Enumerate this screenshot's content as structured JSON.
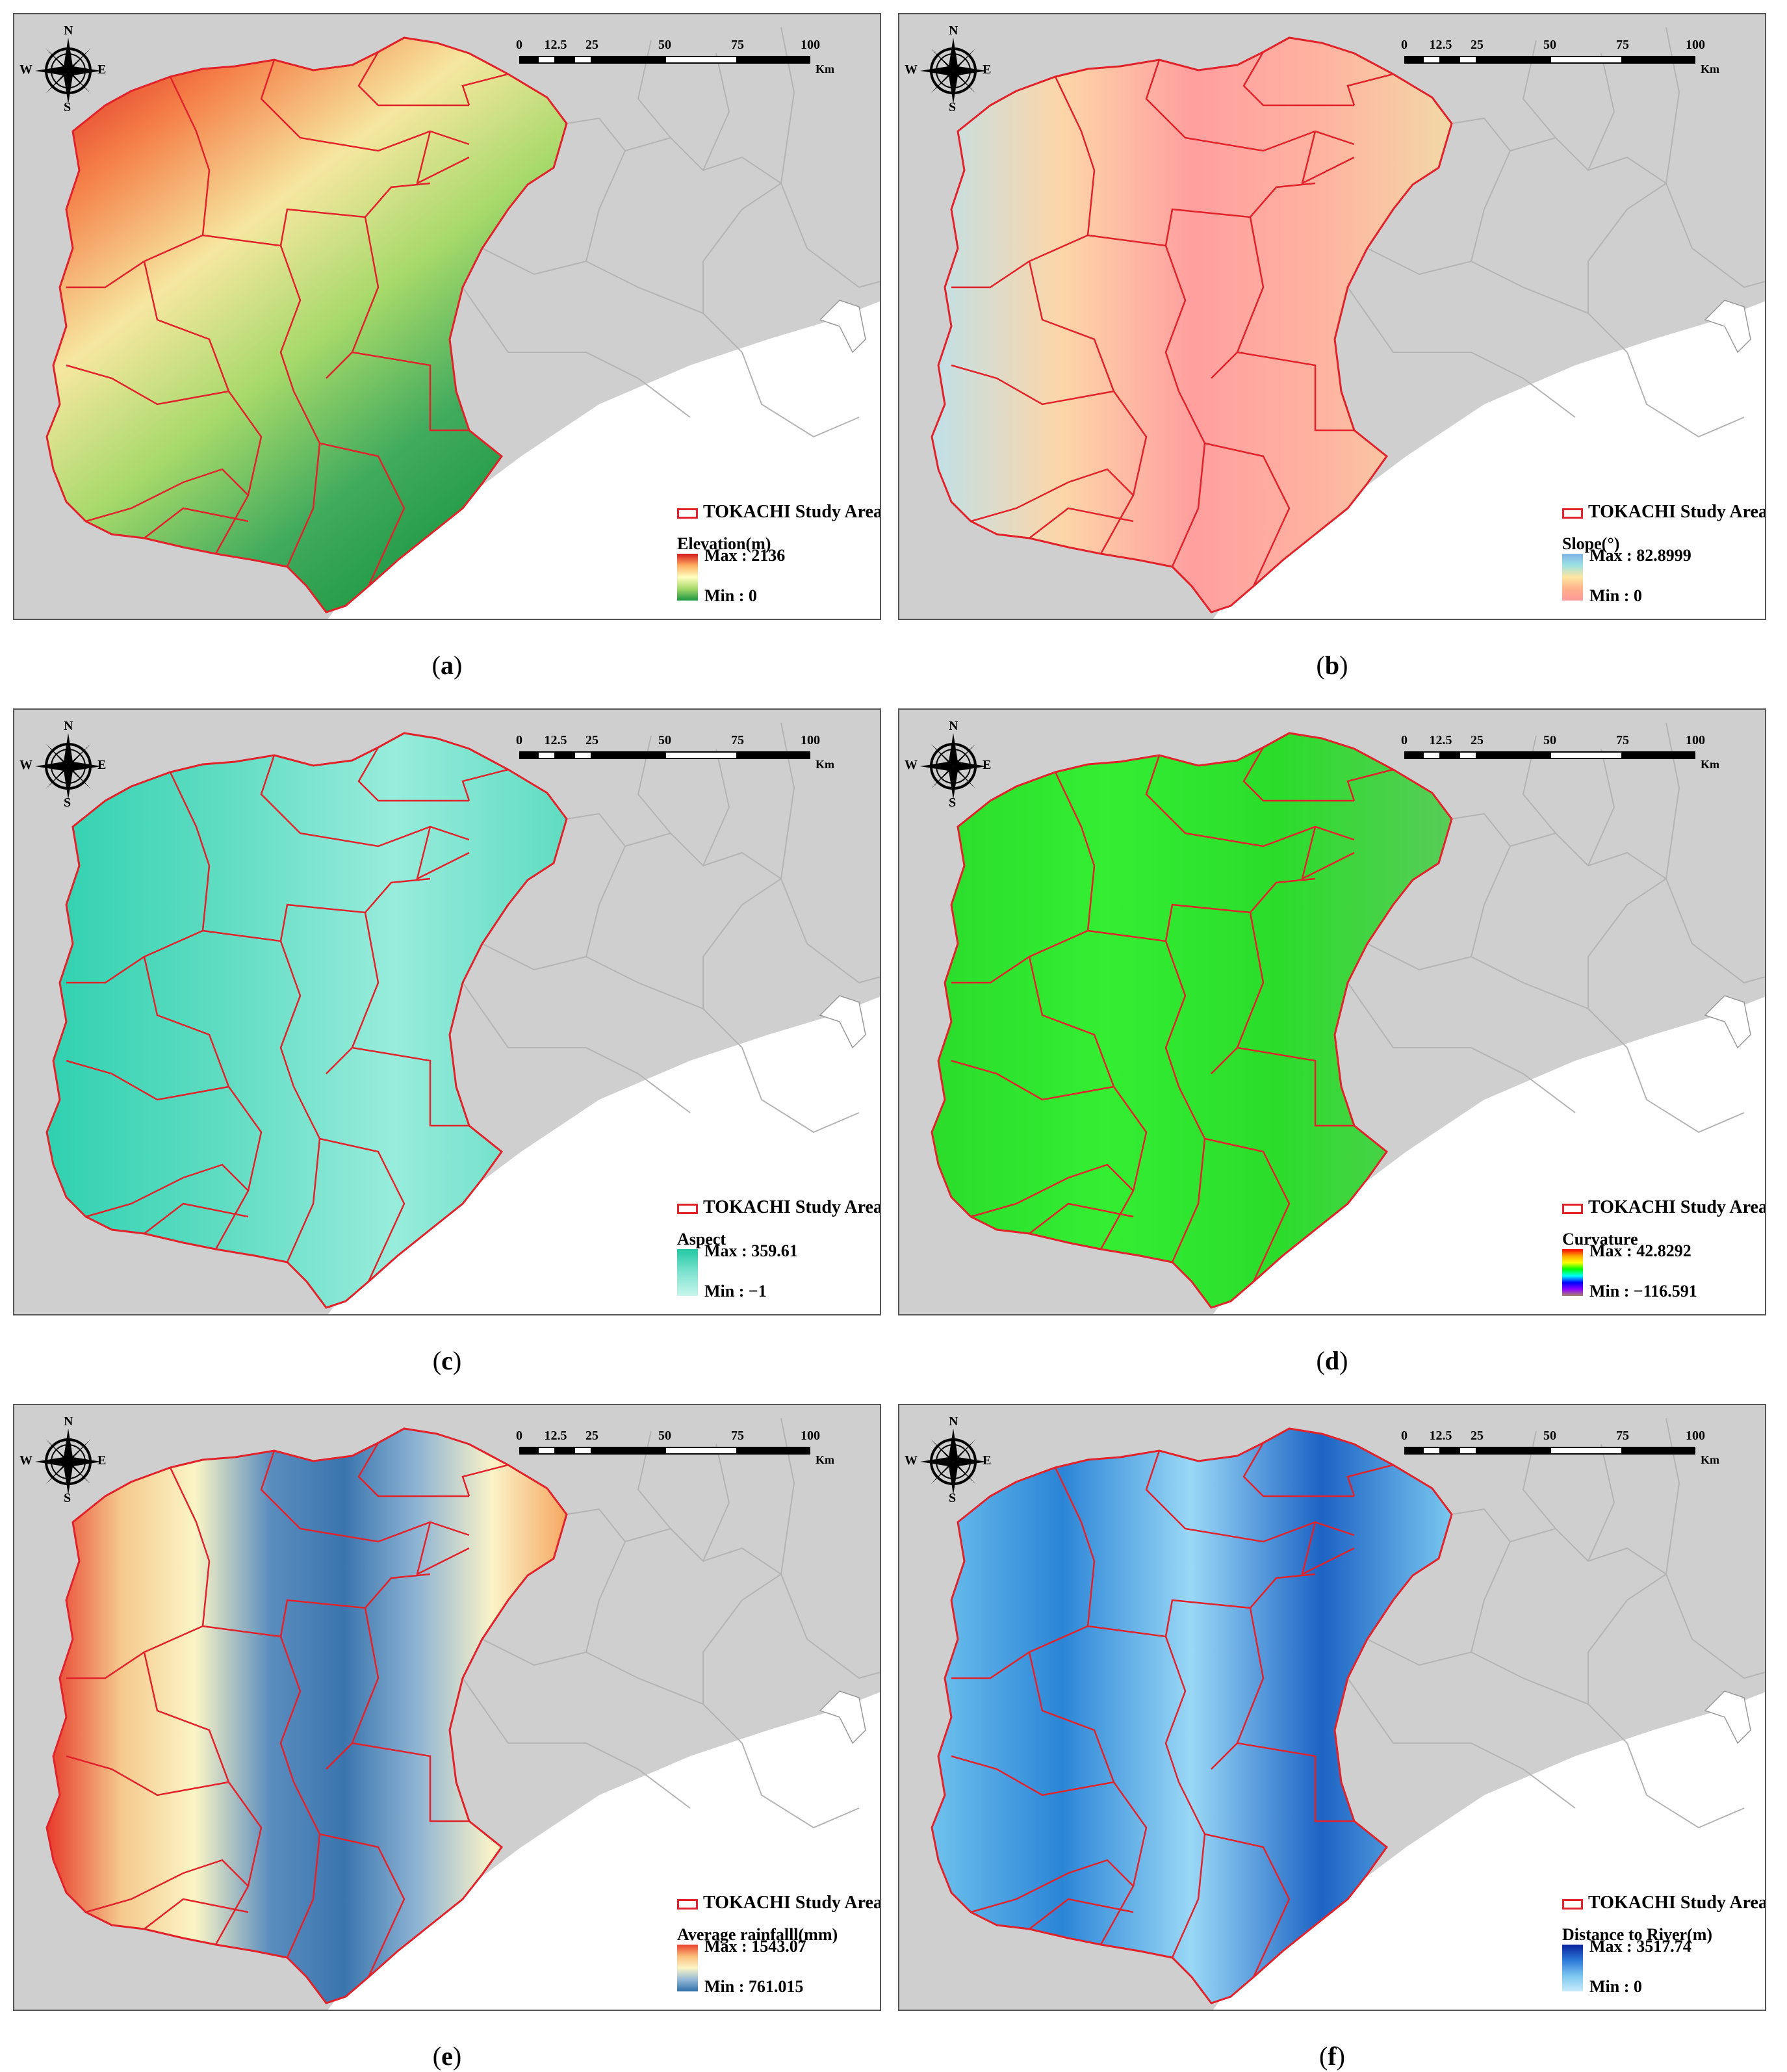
{
  "scale": {
    "ticks": [
      "0",
      "12.5",
      "25",
      "50",
      "75",
      "100"
    ],
    "unit": "Km"
  },
  "compass": {
    "n": "N",
    "s": "S",
    "e": "E",
    "w": "W",
    "icon": "compass-rose-icon"
  },
  "study_area_label": "TOKACHI Study Area",
  "colors": {
    "background": "#cfcfcf",
    "boundary": "#e2222b",
    "sea": "#ffffff",
    "district": "#b4b4b4"
  },
  "panels": [
    {
      "id": "a",
      "caption": "a",
      "title": "Elevation(m)",
      "max": "Max : 2136",
      "min": "Min : 0",
      "ramp": [
        "#d7191c",
        "#fdae61",
        "#ffffbf",
        "#a6d96a",
        "#1a9641"
      ]
    },
    {
      "id": "b",
      "caption": "b",
      "title": "Slope(°)",
      "max": "Max : 82.8999",
      "min": "Min : 0",
      "ramp": [
        "#7fb3e8",
        "#9de2e2",
        "#ffe6a0",
        "#ffb08a",
        "#ff9a9a"
      ]
    },
    {
      "id": "c",
      "caption": "c",
      "title": "Aspect",
      "max": "Max : 359.61",
      "min": "Min : −1",
      "ramp": [
        "#21c8a4",
        "#7fe3cf",
        "#c8f5ec"
      ]
    },
    {
      "id": "d",
      "caption": "d",
      "title": "Curvature",
      "max": "Max : 42.8292",
      "min": "Min : −116.591",
      "ramp": [
        "#ff0000",
        "#ffa500",
        "#ffff00",
        "#00ff00",
        "#00ffff",
        "#0000ff",
        "#8b00ff",
        "#a86"
      ]
    },
    {
      "id": "e",
      "caption": "e",
      "title": "Average rainfalll(mm)",
      "max": "Max : 1543.07",
      "min": "Min : 761.015",
      "ramp": [
        "#e9412b",
        "#fbbf7a",
        "#fbf5c6",
        "#94b8d6",
        "#2e6fa8"
      ]
    },
    {
      "id": "f",
      "caption": "f",
      "title": "Distance to River(m)",
      "max": "Max : 3517.74",
      "min": "Min : 0",
      "ramp": [
        "#08219c",
        "#2c78d8",
        "#7cc6f0",
        "#c9ecfb"
      ]
    }
  ]
}
